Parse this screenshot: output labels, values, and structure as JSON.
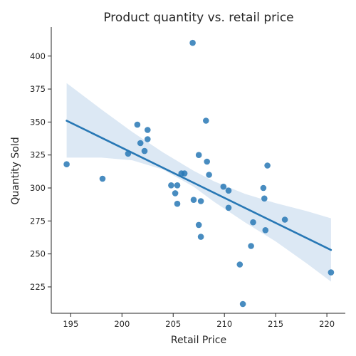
{
  "chart_data": {
    "type": "scatter",
    "title": "Product quantity vs. retail price",
    "xlabel": "Retail Price",
    "ylabel": "Quantity Sold",
    "xlim": [
      193.1,
      221.8
    ],
    "ylim": [
      205.0,
      422.0
    ],
    "xticks": [
      195,
      200,
      205,
      210,
      215,
      220
    ],
    "yticks": [
      225,
      250,
      275,
      300,
      325,
      350,
      375,
      400
    ],
    "grid": false,
    "legend": "none",
    "colors": {
      "points": "#2878b5",
      "line": "#2878b5",
      "band": "#c4d8ec"
    },
    "points": [
      {
        "x": 194.6,
        "y": 318
      },
      {
        "x": 198.1,
        "y": 307
      },
      {
        "x": 200.6,
        "y": 326
      },
      {
        "x": 201.5,
        "y": 348
      },
      {
        "x": 201.8,
        "y": 334
      },
      {
        "x": 202.2,
        "y": 328
      },
      {
        "x": 202.5,
        "y": 344
      },
      {
        "x": 202.5,
        "y": 337
      },
      {
        "x": 204.8,
        "y": 302
      },
      {
        "x": 205.2,
        "y": 296
      },
      {
        "x": 205.4,
        "y": 302
      },
      {
        "x": 205.4,
        "y": 288
      },
      {
        "x": 205.8,
        "y": 311
      },
      {
        "x": 206.1,
        "y": 311
      },
      {
        "x": 206.9,
        "y": 410
      },
      {
        "x": 207.0,
        "y": 291
      },
      {
        "x": 207.5,
        "y": 325
      },
      {
        "x": 207.5,
        "y": 272
      },
      {
        "x": 207.7,
        "y": 290
      },
      {
        "x": 207.7,
        "y": 263
      },
      {
        "x": 208.2,
        "y": 351
      },
      {
        "x": 208.3,
        "y": 320
      },
      {
        "x": 208.5,
        "y": 310
      },
      {
        "x": 209.9,
        "y": 301
      },
      {
        "x": 210.4,
        "y": 298
      },
      {
        "x": 210.4,
        "y": 285
      },
      {
        "x": 211.5,
        "y": 242
      },
      {
        "x": 211.8,
        "y": 212
      },
      {
        "x": 212.6,
        "y": 256
      },
      {
        "x": 212.8,
        "y": 274
      },
      {
        "x": 213.8,
        "y": 300
      },
      {
        "x": 213.9,
        "y": 292
      },
      {
        "x": 214.0,
        "y": 268
      },
      {
        "x": 214.2,
        "y": 317
      },
      {
        "x": 215.9,
        "y": 276
      },
      {
        "x": 220.4,
        "y": 236
      }
    ],
    "regression": {
      "x_start": 194.6,
      "x_end": 220.4,
      "y_start": 351,
      "y_end": 253
    },
    "confidence_band": {
      "x": [
        194.6,
        198.0,
        201.0,
        204.0,
        207.0,
        209.0,
        212.0,
        215.0,
        218.0,
        220.4
      ],
      "upper": [
        379.5,
        359.5,
        342.5,
        327.0,
        313.0,
        305.0,
        295.5,
        288.5,
        282.5,
        277.0
      ],
      "lower": [
        323.0,
        323.0,
        321.0,
        314.0,
        301.0,
        289.5,
        274.0,
        259.5,
        243.0,
        229.0
      ]
    }
  }
}
